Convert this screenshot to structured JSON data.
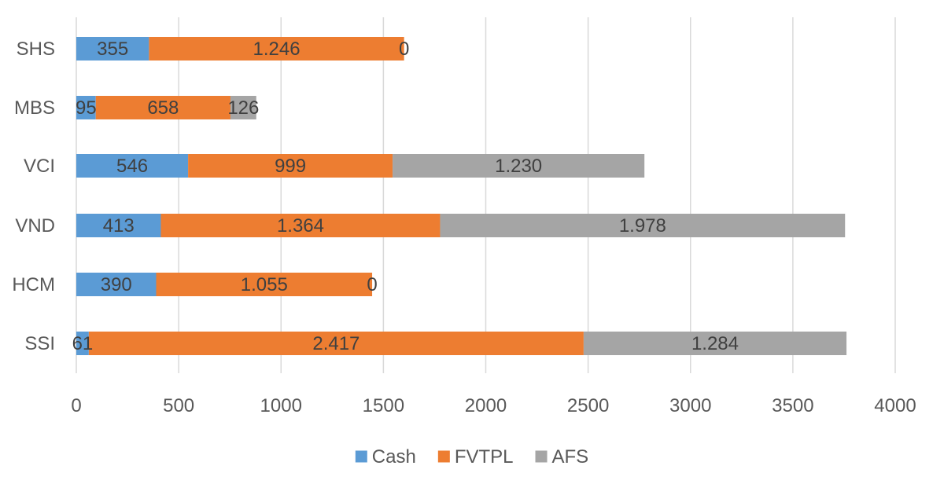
{
  "chart_data": {
    "type": "bar",
    "orientation": "horizontal",
    "stacked": true,
    "title": "",
    "xlabel": "",
    "ylabel": "",
    "categories": [
      "SHS",
      "MBS",
      "VCI",
      "VND",
      "HCM",
      "SSI"
    ],
    "series": [
      {
        "name": "Cash",
        "color": "#5b9bd5",
        "values": [
          355,
          95,
          546,
          413,
          390,
          61
        ],
        "labels": [
          "355",
          "95",
          "546",
          "413",
          "390",
          "61"
        ]
      },
      {
        "name": "FVTPL",
        "color": "#ed7d31",
        "values": [
          1246,
          658,
          999,
          1364,
          1055,
          2417
        ],
        "labels": [
          "1.246",
          "658",
          "999",
          "1.364",
          "1.055",
          "2.417"
        ]
      },
      {
        "name": "AFS",
        "color": "#a5a5a5",
        "values": [
          0,
          126,
          1230,
          1978,
          0,
          1284
        ],
        "labels": [
          "0",
          "126",
          "1.230",
          "1.978",
          "0",
          "1.284"
        ]
      }
    ],
    "xlim": [
      0,
      4000
    ],
    "xticks": [
      0,
      500,
      1000,
      1500,
      2000,
      2500,
      3000,
      3500,
      4000
    ],
    "grid": true,
    "legend": "bottom-center"
  }
}
